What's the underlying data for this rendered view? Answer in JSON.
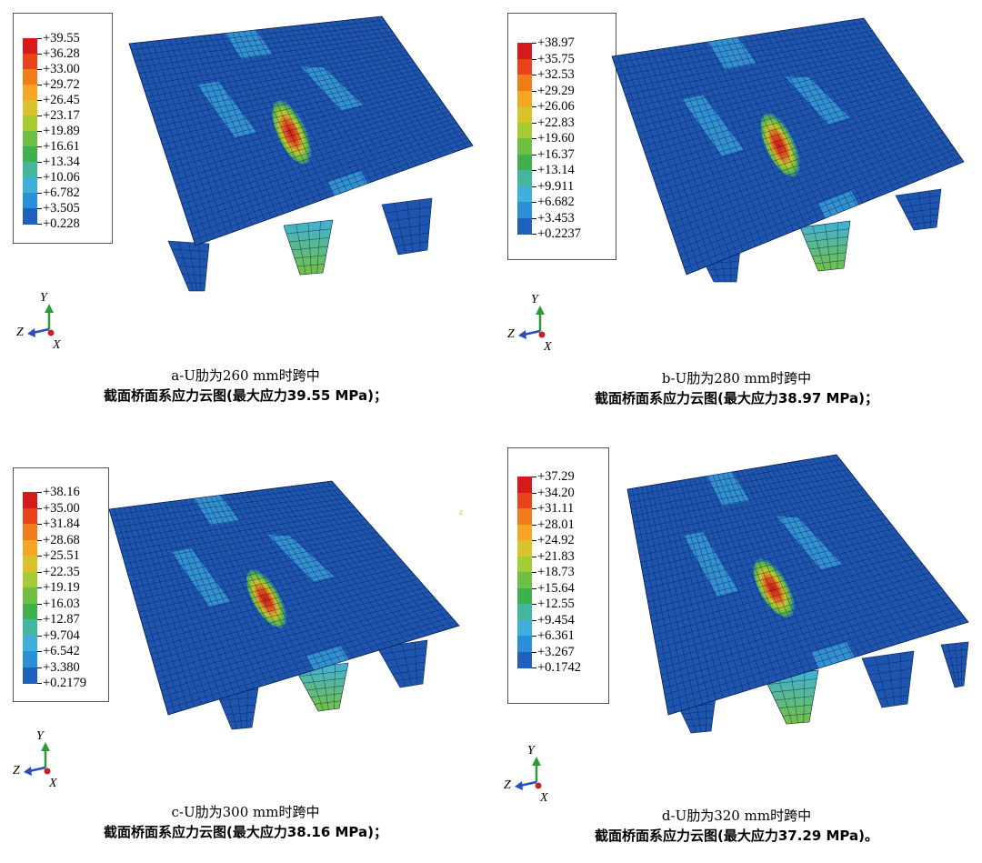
{
  "legend_colors": [
    "#d7191c",
    "#e8431a",
    "#f07c1b",
    "#f5a623",
    "#d9c22b",
    "#a5cc32",
    "#6dc043",
    "#3fb04c",
    "#44b6a0",
    "#3fb0d9",
    "#2a8fd6",
    "#2060bd",
    "#1c49a8"
  ],
  "panels": [
    {
      "id": "a",
      "legend_values": [
        "+39.55",
        "+36.28",
        "+33.00",
        "+29.72",
        "+26.45",
        "+23.17",
        "+19.89",
        "+16.61",
        "+13.34",
        "+10.06",
        "+6.782",
        "+3.505",
        "+0.228"
      ],
      "axis_labels": {
        "y": "Y",
        "z": "Z",
        "x": "X"
      },
      "caption_line1": "a-U肋为260 mm时跨中",
      "caption_line2": "截面桥面系应力云图(最大应力39.55 MPa)；"
    },
    {
      "id": "b",
      "legend_values": [
        "+38.97",
        "+35.75",
        "+32.53",
        "+29.29",
        "+26.06",
        "+22.83",
        "+19.60",
        "+16.37",
        "+13.14",
        "+9.911",
        "+6.682",
        "+3.453",
        "+0.2237"
      ],
      "axis_labels": {
        "y": "Y",
        "z": "Z",
        "x": "X"
      },
      "caption_line1": "b-U肋为280 mm时跨中",
      "caption_line2": "截面桥面系应力云图(最大应力38.97 MPa)；"
    },
    {
      "id": "c",
      "legend_values": [
        "+38.16",
        "+35.00",
        "+31.84",
        "+28.68",
        "+25.51",
        "+22.35",
        "+19.19",
        "+16.03",
        "+12.87",
        "+9.704",
        "+6.542",
        "+3.380",
        "+0.2179"
      ],
      "axis_labels": {
        "y": "Y",
        "z": "Z",
        "x": "X"
      },
      "caption_line1": "c-U肋为300 mm时跨中",
      "caption_line2": "截面桥面系应力云图(最大应力38.16 MPa)；"
    },
    {
      "id": "d",
      "legend_values": [
        "+37.29",
        "+34.20",
        "+31.11",
        "+28.01",
        "+24.92",
        "+21.83",
        "+18.73",
        "+15.64",
        "+12.55",
        "+9.454",
        "+6.361",
        "+3.267",
        "+0.1742"
      ],
      "axis_labels": {
        "y": "Y",
        "z": "Z",
        "x": "X"
      },
      "caption_line1": "d-U肋为320 mm时跨中",
      "caption_line2": "截面桥面系应力云图(最大应力37.29 MPa)。"
    }
  ],
  "stray_mark": "z"
}
